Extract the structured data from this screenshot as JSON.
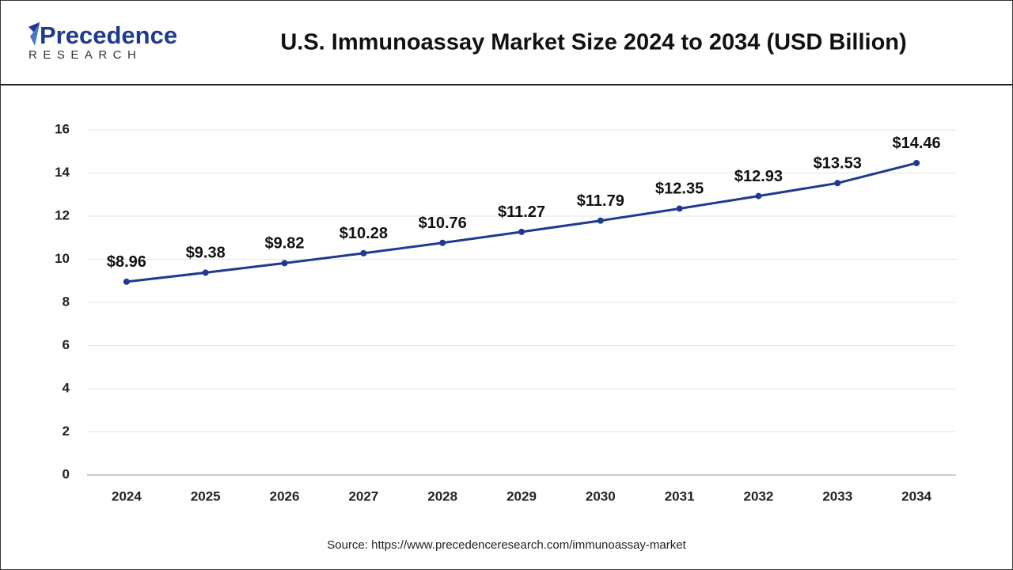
{
  "logo": {
    "name": "Precedence",
    "tagline": "RESEARCH"
  },
  "chart_data": {
    "type": "line",
    "title": "U.S. Immunoassay Market Size 2024 to 2034 (USD Billion)",
    "categories": [
      "2024",
      "2025",
      "2026",
      "2027",
      "2028",
      "2029",
      "2030",
      "2031",
      "2032",
      "2033",
      "2034"
    ],
    "series": [
      {
        "color": "#1f3a8f",
        "values": [
          8.96,
          9.38,
          9.82,
          10.28,
          10.76,
          11.27,
          11.79,
          12.35,
          12.93,
          13.53,
          14.46
        ],
        "value_labels": [
          "$8.96",
          "$9.38",
          "$9.82",
          "$10.28",
          "$10.76",
          "$11.27",
          "$11.79",
          "$12.35",
          "$12.93",
          "$13.53",
          "$14.46"
        ]
      }
    ],
    "ylim": [
      0,
      16
    ],
    "yticks": [
      0,
      2,
      4,
      6,
      8,
      10,
      12,
      14,
      16
    ],
    "grid": true,
    "source": "Source: https://www.precedenceresearch.com/immunoassay-market"
  }
}
